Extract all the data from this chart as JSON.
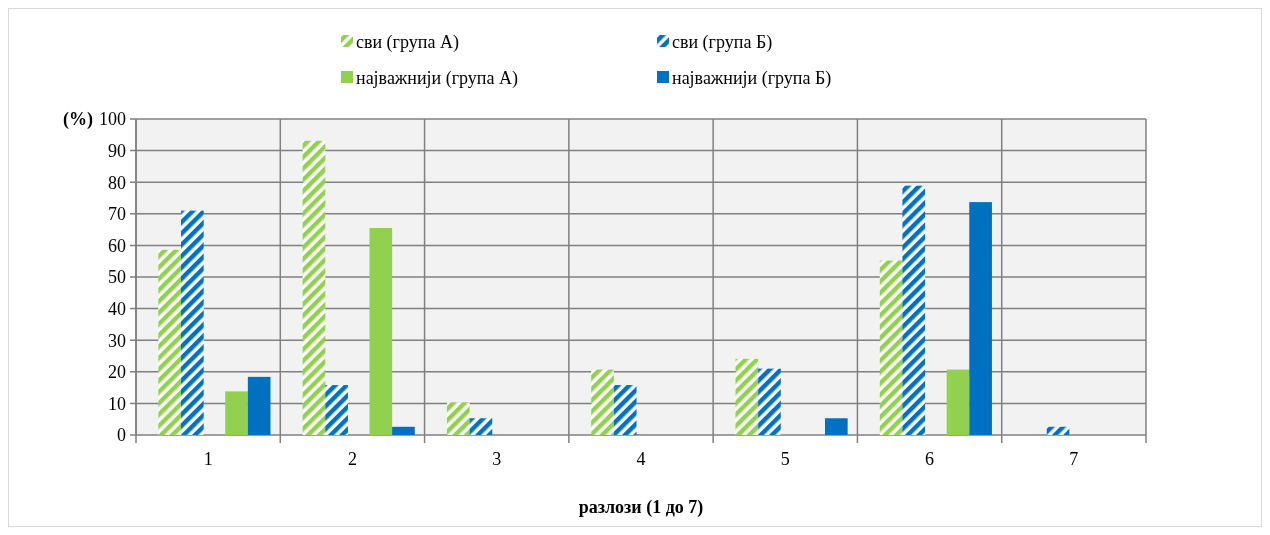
{
  "chart_data": {
    "type": "bar",
    "xlabel": "разлози (1 до 7)",
    "ylabel": "(%)",
    "categories": [
      "1",
      "2",
      "3",
      "4",
      "5",
      "6",
      "7"
    ],
    "series": [
      {
        "name": "сви (група А)",
        "color": "#92d050",
        "values": [
          58.6,
          93.1,
          10.3,
          20.7,
          24.1,
          55.2,
          0
        ]
      },
      {
        "name": "сви (група Б)",
        "color": "#0070c0",
        "values": [
          71.0,
          15.8,
          5.3,
          15.8,
          21.0,
          78.9,
          2.6
        ]
      },
      {
        "name": "најважнији (група А)",
        "color": "#92d050",
        "values": [
          13.8,
          65.5,
          0,
          0,
          0,
          20.7,
          0
        ]
      },
      {
        "name": "најважнији (група Б)",
        "color": "#0070c0",
        "values": [
          18.4,
          2.6,
          0,
          0,
          5.3,
          73.7,
          0
        ]
      }
    ],
    "ylim": [
      0,
      100
    ],
    "yticks": [
      0,
      10,
      20,
      30,
      40,
      50,
      60,
      70,
      80,
      90,
      100
    ],
    "grid": true,
    "legend": "top"
  }
}
